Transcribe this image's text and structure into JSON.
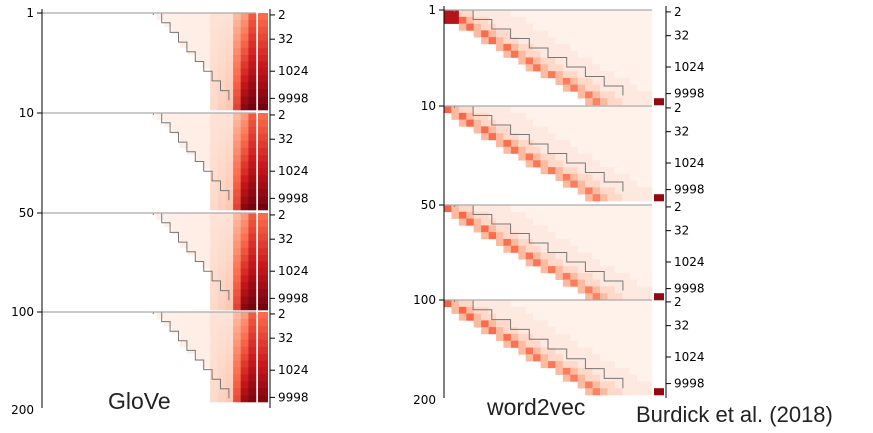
{
  "figure": {
    "captions": {
      "glove": "GloVe",
      "word2vec": "word2vec",
      "credit": "Burdick et al. (2018)"
    }
  },
  "chart_data": [
    {
      "type": "heatmap",
      "title": "GloVe",
      "left_axis_ticks": [
        "1",
        "10",
        "50",
        "100",
        "200"
      ],
      "right_axis_ticks": [
        "2",
        "32",
        "1024",
        "9998"
      ],
      "panels": [
        {
          "left_label": "1",
          "right_ticks": [
            "2",
            "32",
            "1024",
            "9998"
          ]
        },
        {
          "left_label": "10",
          "right_ticks": [
            "2",
            "32",
            "1024",
            "9998"
          ]
        },
        {
          "left_label": "50",
          "right_ticks": [
            "2",
            "32",
            "1024",
            "9998"
          ]
        },
        {
          "left_label": "100",
          "right_ticks": [
            "2",
            "32",
            "1024",
            "9998"
          ]
        }
      ],
      "colormap": [
        "#fff5f0",
        "#fcbba1",
        "#fb6a4a",
        "#cb181d",
        "#67000d"
      ],
      "pattern": "concentrated-right",
      "grid": false
    },
    {
      "type": "heatmap",
      "title": "word2vec",
      "left_axis_ticks": [
        "1",
        "10",
        "50",
        "100",
        "200"
      ],
      "right_axis_ticks": [
        "2",
        "32",
        "1024",
        "9998"
      ],
      "panels": [
        {
          "left_label": "1",
          "right_ticks": [
            "2",
            "32",
            "1024",
            "9998"
          ]
        },
        {
          "left_label": "10",
          "right_ticks": [
            "2",
            "32",
            "1024",
            "9998"
          ]
        },
        {
          "left_label": "50",
          "right_ticks": [
            "2",
            "32",
            "1024",
            "9998"
          ]
        },
        {
          "left_label": "100",
          "right_ticks": [
            "2",
            "32",
            "1024",
            "9998"
          ]
        }
      ],
      "colormap": [
        "#fff5f0",
        "#fcbba1",
        "#fb6a4a",
        "#cb181d",
        "#67000d"
      ],
      "pattern": "diagonal",
      "grid": false
    }
  ]
}
